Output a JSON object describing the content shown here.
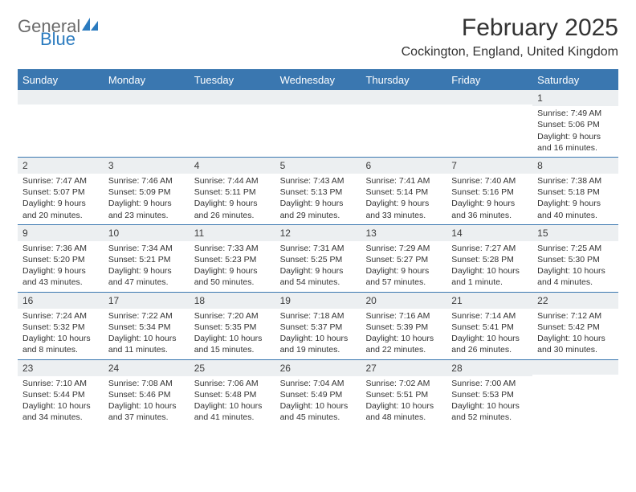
{
  "logo": {
    "text1": "General",
    "text2": "Blue",
    "icon_color": "#2b7bbf"
  },
  "header": {
    "month_title": "February 2025",
    "location": "Cockington, England, United Kingdom"
  },
  "colors": {
    "header_bar": "#3a77b0",
    "header_text": "#ffffff",
    "daynum_bg": "#eceff1",
    "border": "#3a77b0",
    "body_text": "#333333"
  },
  "day_names": [
    "Sunday",
    "Monday",
    "Tuesday",
    "Wednesday",
    "Thursday",
    "Friday",
    "Saturday"
  ],
  "weeks": [
    [
      {
        "blank": true
      },
      {
        "blank": true
      },
      {
        "blank": true
      },
      {
        "blank": true
      },
      {
        "blank": true
      },
      {
        "blank": true
      },
      {
        "day": "1",
        "sunrise": "Sunrise: 7:49 AM",
        "sunset": "Sunset: 5:06 PM",
        "daylight1": "Daylight: 9 hours",
        "daylight2": "and 16 minutes."
      }
    ],
    [
      {
        "day": "2",
        "sunrise": "Sunrise: 7:47 AM",
        "sunset": "Sunset: 5:07 PM",
        "daylight1": "Daylight: 9 hours",
        "daylight2": "and 20 minutes."
      },
      {
        "day": "3",
        "sunrise": "Sunrise: 7:46 AM",
        "sunset": "Sunset: 5:09 PM",
        "daylight1": "Daylight: 9 hours",
        "daylight2": "and 23 minutes."
      },
      {
        "day": "4",
        "sunrise": "Sunrise: 7:44 AM",
        "sunset": "Sunset: 5:11 PM",
        "daylight1": "Daylight: 9 hours",
        "daylight2": "and 26 minutes."
      },
      {
        "day": "5",
        "sunrise": "Sunrise: 7:43 AM",
        "sunset": "Sunset: 5:13 PM",
        "daylight1": "Daylight: 9 hours",
        "daylight2": "and 29 minutes."
      },
      {
        "day": "6",
        "sunrise": "Sunrise: 7:41 AM",
        "sunset": "Sunset: 5:14 PM",
        "daylight1": "Daylight: 9 hours",
        "daylight2": "and 33 minutes."
      },
      {
        "day": "7",
        "sunrise": "Sunrise: 7:40 AM",
        "sunset": "Sunset: 5:16 PM",
        "daylight1": "Daylight: 9 hours",
        "daylight2": "and 36 minutes."
      },
      {
        "day": "8",
        "sunrise": "Sunrise: 7:38 AM",
        "sunset": "Sunset: 5:18 PM",
        "daylight1": "Daylight: 9 hours",
        "daylight2": "and 40 minutes."
      }
    ],
    [
      {
        "day": "9",
        "sunrise": "Sunrise: 7:36 AM",
        "sunset": "Sunset: 5:20 PM",
        "daylight1": "Daylight: 9 hours",
        "daylight2": "and 43 minutes."
      },
      {
        "day": "10",
        "sunrise": "Sunrise: 7:34 AM",
        "sunset": "Sunset: 5:21 PM",
        "daylight1": "Daylight: 9 hours",
        "daylight2": "and 47 minutes."
      },
      {
        "day": "11",
        "sunrise": "Sunrise: 7:33 AM",
        "sunset": "Sunset: 5:23 PM",
        "daylight1": "Daylight: 9 hours",
        "daylight2": "and 50 minutes."
      },
      {
        "day": "12",
        "sunrise": "Sunrise: 7:31 AM",
        "sunset": "Sunset: 5:25 PM",
        "daylight1": "Daylight: 9 hours",
        "daylight2": "and 54 minutes."
      },
      {
        "day": "13",
        "sunrise": "Sunrise: 7:29 AM",
        "sunset": "Sunset: 5:27 PM",
        "daylight1": "Daylight: 9 hours",
        "daylight2": "and 57 minutes."
      },
      {
        "day": "14",
        "sunrise": "Sunrise: 7:27 AM",
        "sunset": "Sunset: 5:28 PM",
        "daylight1": "Daylight: 10 hours",
        "daylight2": "and 1 minute."
      },
      {
        "day": "15",
        "sunrise": "Sunrise: 7:25 AM",
        "sunset": "Sunset: 5:30 PM",
        "daylight1": "Daylight: 10 hours",
        "daylight2": "and 4 minutes."
      }
    ],
    [
      {
        "day": "16",
        "sunrise": "Sunrise: 7:24 AM",
        "sunset": "Sunset: 5:32 PM",
        "daylight1": "Daylight: 10 hours",
        "daylight2": "and 8 minutes."
      },
      {
        "day": "17",
        "sunrise": "Sunrise: 7:22 AM",
        "sunset": "Sunset: 5:34 PM",
        "daylight1": "Daylight: 10 hours",
        "daylight2": "and 11 minutes."
      },
      {
        "day": "18",
        "sunrise": "Sunrise: 7:20 AM",
        "sunset": "Sunset: 5:35 PM",
        "daylight1": "Daylight: 10 hours",
        "daylight2": "and 15 minutes."
      },
      {
        "day": "19",
        "sunrise": "Sunrise: 7:18 AM",
        "sunset": "Sunset: 5:37 PM",
        "daylight1": "Daylight: 10 hours",
        "daylight2": "and 19 minutes."
      },
      {
        "day": "20",
        "sunrise": "Sunrise: 7:16 AM",
        "sunset": "Sunset: 5:39 PM",
        "daylight1": "Daylight: 10 hours",
        "daylight2": "and 22 minutes."
      },
      {
        "day": "21",
        "sunrise": "Sunrise: 7:14 AM",
        "sunset": "Sunset: 5:41 PM",
        "daylight1": "Daylight: 10 hours",
        "daylight2": "and 26 minutes."
      },
      {
        "day": "22",
        "sunrise": "Sunrise: 7:12 AM",
        "sunset": "Sunset: 5:42 PM",
        "daylight1": "Daylight: 10 hours",
        "daylight2": "and 30 minutes."
      }
    ],
    [
      {
        "day": "23",
        "sunrise": "Sunrise: 7:10 AM",
        "sunset": "Sunset: 5:44 PM",
        "daylight1": "Daylight: 10 hours",
        "daylight2": "and 34 minutes."
      },
      {
        "day": "24",
        "sunrise": "Sunrise: 7:08 AM",
        "sunset": "Sunset: 5:46 PM",
        "daylight1": "Daylight: 10 hours",
        "daylight2": "and 37 minutes."
      },
      {
        "day": "25",
        "sunrise": "Sunrise: 7:06 AM",
        "sunset": "Sunset: 5:48 PM",
        "daylight1": "Daylight: 10 hours",
        "daylight2": "and 41 minutes."
      },
      {
        "day": "26",
        "sunrise": "Sunrise: 7:04 AM",
        "sunset": "Sunset: 5:49 PM",
        "daylight1": "Daylight: 10 hours",
        "daylight2": "and 45 minutes."
      },
      {
        "day": "27",
        "sunrise": "Sunrise: 7:02 AM",
        "sunset": "Sunset: 5:51 PM",
        "daylight1": "Daylight: 10 hours",
        "daylight2": "and 48 minutes."
      },
      {
        "day": "28",
        "sunrise": "Sunrise: 7:00 AM",
        "sunset": "Sunset: 5:53 PM",
        "daylight1": "Daylight: 10 hours",
        "daylight2": "and 52 minutes."
      },
      {
        "blank": true
      }
    ]
  ]
}
